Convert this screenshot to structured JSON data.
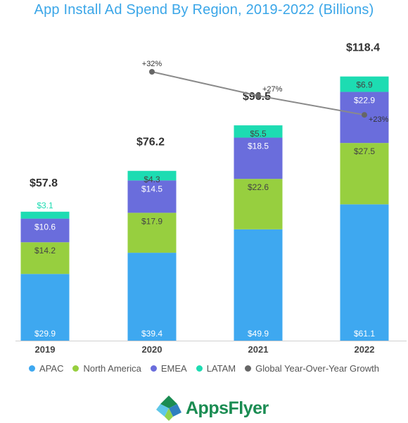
{
  "title": "App Install Ad Spend By Region, 2019-2022 (Billions)",
  "colors": {
    "APAC": "#3ea8f0",
    "North America": "#97cf3f",
    "EMEA": "#6a6ddc",
    "LATAM": "#1ddcb2",
    "Global Year-Over-Year Growth": "#666666"
  },
  "legend": [
    {
      "label": "APAC",
      "color": "#3ea8f0"
    },
    {
      "label": "North America",
      "color": "#97cf3f"
    },
    {
      "label": "EMEA",
      "color": "#6a6ddc"
    },
    {
      "label": "LATAM",
      "color": "#1ddcb2"
    },
    {
      "label": "Global Year-Over-Year Growth",
      "color": "#666666"
    }
  ],
  "logo": {
    "text": "AppsFlyer"
  },
  "chart_data": {
    "type": "bar",
    "stacked": true,
    "title": "App Install Ad Spend By Region, 2019-2022 (Billions)",
    "categories": [
      "2019",
      "2020",
      "2021",
      "2022"
    ],
    "series": [
      {
        "name": "APAC",
        "values": [
          29.9,
          39.4,
          49.9,
          61.1
        ],
        "labels": [
          "$29.9",
          "$39.4",
          "$49.9",
          "$61.1"
        ]
      },
      {
        "name": "North America",
        "values": [
          14.2,
          17.9,
          22.6,
          27.5
        ],
        "labels": [
          "$14.2",
          "$17.9",
          "$22.6",
          "$27.5"
        ]
      },
      {
        "name": "EMEA",
        "values": [
          10.6,
          14.5,
          18.5,
          22.9
        ],
        "labels": [
          "$10.6",
          "$14.5",
          "$18.5",
          "$22.9"
        ]
      },
      {
        "name": "LATAM",
        "values": [
          3.1,
          4.3,
          5.5,
          6.9
        ],
        "labels": [
          "$3.1",
          "$4.3",
          "$5.5",
          "$6.9"
        ]
      }
    ],
    "totals": [
      57.8,
      76.2,
      96.5,
      118.4
    ],
    "total_labels": [
      "$57.8",
      "$76.2",
      "$96.5",
      "$118.4"
    ],
    "growth": {
      "name": "Global Year-Over-Year Growth",
      "categories": [
        "2020",
        "2021",
        "2022"
      ],
      "values": [
        32,
        27,
        23
      ],
      "labels": [
        "+32%",
        "+27%",
        "+23%"
      ]
    },
    "ylim": [
      0,
      125
    ],
    "grid": false,
    "legend_position": "bottom"
  }
}
